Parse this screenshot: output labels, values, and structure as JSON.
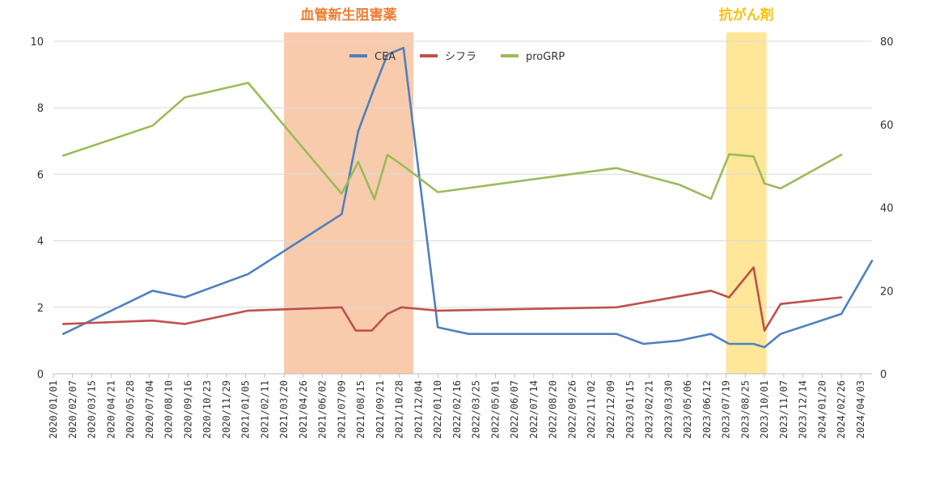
{
  "chart_data": {
    "type": "line",
    "title": "",
    "xlabel": "",
    "ylabel": "",
    "x_ticks": [
      "2020/01/01",
      "2020/02/07",
      "2020/03/15",
      "2020/04/21",
      "2020/05/28",
      "2020/07/04",
      "2020/08/10",
      "2020/09/16",
      "2020/10/23",
      "2020/11/29",
      "2021/01/05",
      "2021/02/11",
      "2021/03/20",
      "2021/04/26",
      "2021/06/02",
      "2021/07/09",
      "2021/08/15",
      "2021/09/21",
      "2021/10/28",
      "2021/12/04",
      "2022/01/10",
      "2022/02/16",
      "2022/03/25",
      "2022/05/01",
      "2022/06/07",
      "2022/07/14",
      "2022/08/20",
      "2022/09/26",
      "2022/11/02",
      "2022/12/09",
      "2023/01/15",
      "2023/02/21",
      "2023/03/30",
      "2023/05/06",
      "2023/06/12",
      "2023/07/19",
      "2023/08/25",
      "2023/10/01",
      "2023/11/07",
      "2023/12/14",
      "2024/01/20",
      "2024/02/26",
      "2024/04/03"
    ],
    "xlim": [
      "2020/01/01",
      "2024/04/25"
    ],
    "ylim_left": [
      0,
      10
    ],
    "yticks_left": [
      0,
      2,
      4,
      6,
      8,
      10
    ],
    "ylim_right": [
      0,
      80
    ],
    "yticks_right": [
      0,
      20,
      40,
      60,
      80
    ],
    "grid": true,
    "legend_position": "top-center",
    "bands": [
      {
        "label": "血管新生阻害薬",
        "start": "2021/03/20",
        "end": "2021/11/24",
        "color": "#f8cbad",
        "label_color": "#ed7d31"
      },
      {
        "label": "抗がん剤",
        "start": "2023/07/19",
        "end": "2023/10/05",
        "color": "#ffe699",
        "label_color": "#ffc000"
      }
    ],
    "series": [
      {
        "name": "CEA",
        "axis": "left",
        "color": "#4f81bd",
        "points": [
          [
            "2020/01/20",
            1.2
          ],
          [
            "2020/07/10",
            2.5
          ],
          [
            "2020/09/10",
            2.3
          ],
          [
            "2021/01/10",
            3.0
          ],
          [
            "2021/07/09",
            4.8
          ],
          [
            "2021/08/10",
            7.3
          ],
          [
            "2021/09/10",
            8.6
          ],
          [
            "2021/10/05",
            9.6
          ],
          [
            "2021/11/05",
            9.8
          ],
          [
            "2022/01/10",
            1.4
          ],
          [
            "2022/03/10",
            1.2
          ],
          [
            "2022/12/20",
            1.2
          ],
          [
            "2023/02/10",
            0.9
          ],
          [
            "2023/04/20",
            1.0
          ],
          [
            "2023/06/20",
            1.2
          ],
          [
            "2023/07/25",
            0.9
          ],
          [
            "2023/09/10",
            0.9
          ],
          [
            "2023/10/01",
            0.8
          ],
          [
            "2023/11/01",
            1.2
          ],
          [
            "2024/02/26",
            1.8
          ],
          [
            "2024/04/25",
            3.4
          ]
        ]
      },
      {
        "name": "シフラ",
        "axis": "left",
        "color": "#c0504d",
        "points": [
          [
            "2020/01/20",
            1.5
          ],
          [
            "2020/07/10",
            1.6
          ],
          [
            "2020/09/10",
            1.5
          ],
          [
            "2021/01/10",
            1.9
          ],
          [
            "2021/07/09",
            2.0
          ],
          [
            "2021/08/05",
            1.3
          ],
          [
            "2021/09/05",
            1.3
          ],
          [
            "2021/10/05",
            1.8
          ],
          [
            "2021/11/01",
            2.0
          ],
          [
            "2022/01/10",
            1.9
          ],
          [
            "2022/12/20",
            2.0
          ],
          [
            "2023/06/20",
            2.5
          ],
          [
            "2023/07/25",
            2.3
          ],
          [
            "2023/09/10",
            3.2
          ],
          [
            "2023/10/01",
            1.3
          ],
          [
            "2023/11/01",
            2.1
          ],
          [
            "2024/02/26",
            2.3
          ]
        ]
      },
      {
        "name": "proGRP",
        "axis": "right",
        "color": "#9bbb59",
        "points": [
          [
            "2020/01/20",
            52.5
          ],
          [
            "2020/07/10",
            59.7
          ],
          [
            "2020/09/10",
            66.5
          ],
          [
            "2021/01/10",
            70.0
          ],
          [
            "2021/07/09",
            43.3
          ],
          [
            "2021/08/10",
            51.0
          ],
          [
            "2021/09/10",
            42.0
          ],
          [
            "2021/10/05",
            52.7
          ],
          [
            "2021/11/05",
            50.0
          ],
          [
            "2022/01/10",
            43.7
          ],
          [
            "2022/12/20",
            49.5
          ],
          [
            "2023/04/20",
            45.5
          ],
          [
            "2023/06/20",
            42.1
          ],
          [
            "2023/07/25",
            52.8
          ],
          [
            "2023/09/10",
            52.3
          ],
          [
            "2023/10/01",
            45.8
          ],
          [
            "2023/11/01",
            44.6
          ],
          [
            "2024/02/26",
            52.7
          ]
        ]
      }
    ]
  }
}
